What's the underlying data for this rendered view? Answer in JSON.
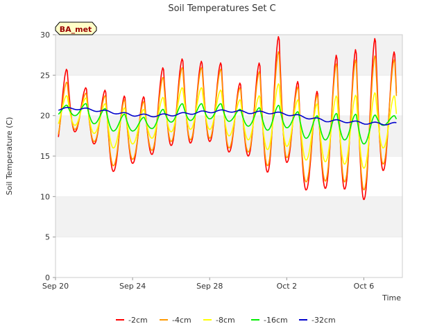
{
  "chart_data": {
    "type": "line",
    "title": "Soil Temperatures Set C",
    "xlabel": "Time",
    "ylabel": "Soil Temperature (C)",
    "badge": "BA_met",
    "xlim": [
      "2023-09-20",
      "2023-10-08"
    ],
    "x_ticks": [
      "Sep 20",
      "Sep 24",
      "Sep 28",
      "Oct 2",
      "Oct 6"
    ],
    "ylim": [
      0,
      30
    ],
    "y_ticks": [
      0,
      5,
      10,
      15,
      20,
      25,
      30
    ],
    "grid": "alternating horizontal bands",
    "legend_position": "bottom",
    "x": [
      "2023-09-20",
      "2023-09-21",
      "2023-09-22",
      "2023-09-23",
      "2023-09-24",
      "2023-09-25",
      "2023-09-26",
      "2023-09-27",
      "2023-09-28",
      "2023-09-29",
      "2023-09-30",
      "2023-10-01",
      "2023-10-02",
      "2023-10-03",
      "2023-10-04",
      "2023-10-05",
      "2023-10-06",
      "2023-10-07"
    ],
    "series": [
      {
        "name": "-2cm",
        "color": "#ff0000",
        "daily_max": [
          25.8,
          23.5,
          23.2,
          22.5,
          22.4,
          26.0,
          27.1,
          26.8,
          26.6,
          24.1,
          26.6,
          29.9,
          24.3,
          23.1,
          27.6,
          28.3,
          29.7,
          28.0
        ],
        "daily_min": [
          16.2,
          18.0,
          16.5,
          13.1,
          14.1,
          15.2,
          16.3,
          16.6,
          16.8,
          15.5,
          15.0,
          13.0,
          14.2,
          10.8,
          11.0,
          10.9,
          9.6,
          13.2
        ]
      },
      {
        "name": "-4cm",
        "color": "#ff9900",
        "daily_max": [
          24.2,
          22.8,
          22.5,
          22.0,
          21.8,
          24.8,
          26.0,
          26.0,
          25.8,
          23.5,
          25.5,
          28.0,
          23.6,
          22.6,
          26.5,
          27.0,
          27.5,
          27.0
        ],
        "daily_min": [
          16.8,
          18.3,
          16.8,
          13.8,
          14.6,
          15.7,
          16.8,
          17.0,
          17.2,
          16.0,
          15.5,
          13.8,
          14.8,
          11.8,
          11.9,
          11.8,
          10.8,
          14.0
        ]
      },
      {
        "name": "-8cm",
        "color": "#ffff00",
        "daily_max": [
          22.5,
          22.2,
          21.5,
          21.0,
          20.8,
          22.3,
          23.5,
          23.5,
          23.2,
          22.0,
          22.5,
          24.0,
          22.0,
          21.5,
          22.5,
          22.6,
          22.9,
          22.5
        ],
        "daily_min": [
          18.5,
          18.8,
          17.8,
          16.0,
          16.5,
          17.2,
          18.0,
          18.3,
          18.3,
          17.5,
          17.0,
          15.8,
          16.2,
          14.5,
          14.3,
          14.0,
          13.5,
          16.0
        ]
      },
      {
        "name": "-16cm",
        "color": "#00ee00",
        "daily_max": [
          21.3,
          21.5,
          20.9,
          20.2,
          19.8,
          20.8,
          21.5,
          21.5,
          21.5,
          20.8,
          21.0,
          21.3,
          20.5,
          20.0,
          20.3,
          20.2,
          20.1,
          20.0
        ],
        "daily_min": [
          20.0,
          20.0,
          19.0,
          18.1,
          18.1,
          18.4,
          19.2,
          19.4,
          19.6,
          19.3,
          18.7,
          18.2,
          18.5,
          17.2,
          17.0,
          17.0,
          16.5,
          18.8
        ]
      },
      {
        "name": "-32cm",
        "color": "#0000cc",
        "daily_mean": [
          20.8,
          20.9,
          20.7,
          20.4,
          20.1,
          20.0,
          20.1,
          20.3,
          20.5,
          20.6,
          20.4,
          20.4,
          20.2,
          19.8,
          19.4,
          19.3,
          19.1,
          19.0
        ]
      }
    ]
  }
}
